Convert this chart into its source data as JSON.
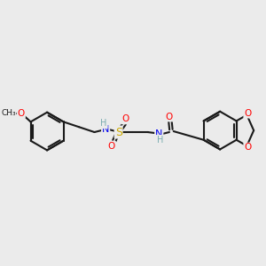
{
  "background_color": "#ebebeb",
  "bond_color": "#1a1a1a",
  "atom_colors": {
    "O": "#ff0000",
    "N": "#0000ee",
    "S": "#ccaa00",
    "H": "#7aacb0",
    "C": "#1a1a1a"
  },
  "figsize": [
    3.0,
    3.0
  ],
  "dpi": 100
}
